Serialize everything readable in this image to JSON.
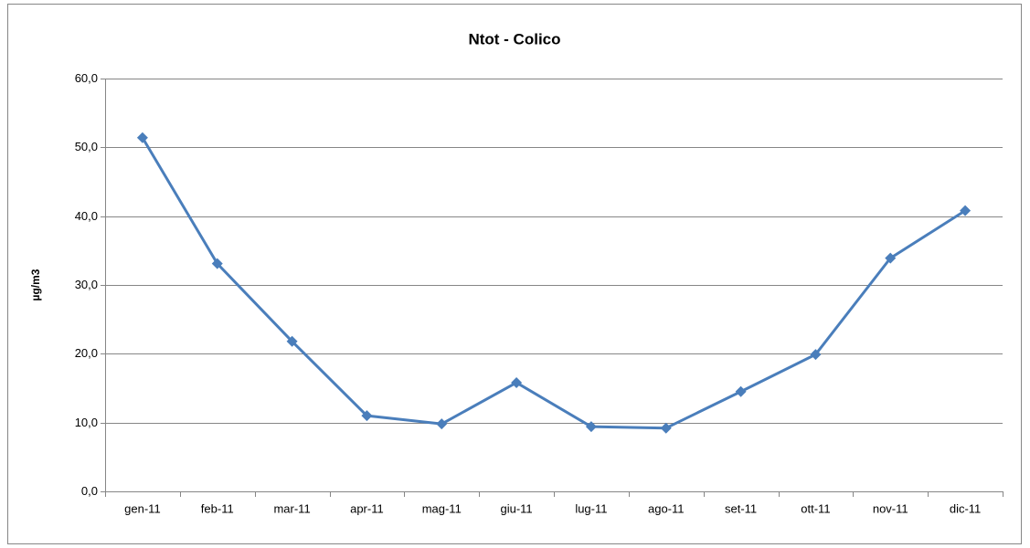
{
  "chart_data": {
    "type": "line",
    "title": "Ntot - Colico",
    "y_label": "µg/m3",
    "categories": [
      "gen-11",
      "feb-11",
      "mar-11",
      "apr-11",
      "mag-11",
      "giu-11",
      "lug-11",
      "ago-11",
      "set-11",
      "ott-11",
      "nov-11",
      "dic-11"
    ],
    "series": [
      {
        "color": "#4a7ebb",
        "values": [
          51.4,
          33.1,
          21.8,
          11.0,
          9.8,
          15.8,
          9.4,
          9.2,
          14.5,
          19.9,
          33.9,
          40.8
        ]
      }
    ],
    "ylim": [
      0,
      60
    ],
    "yticks": [
      {
        "value": 0,
        "label": "0,0"
      },
      {
        "value": 10,
        "label": "10,0"
      },
      {
        "value": 20,
        "label": "20,0"
      },
      {
        "value": 30,
        "label": "30,0"
      },
      {
        "value": 40,
        "label": "40,0"
      },
      {
        "value": 50,
        "label": "50,0"
      },
      {
        "value": 60,
        "label": "60,0"
      }
    ],
    "grid": true
  }
}
